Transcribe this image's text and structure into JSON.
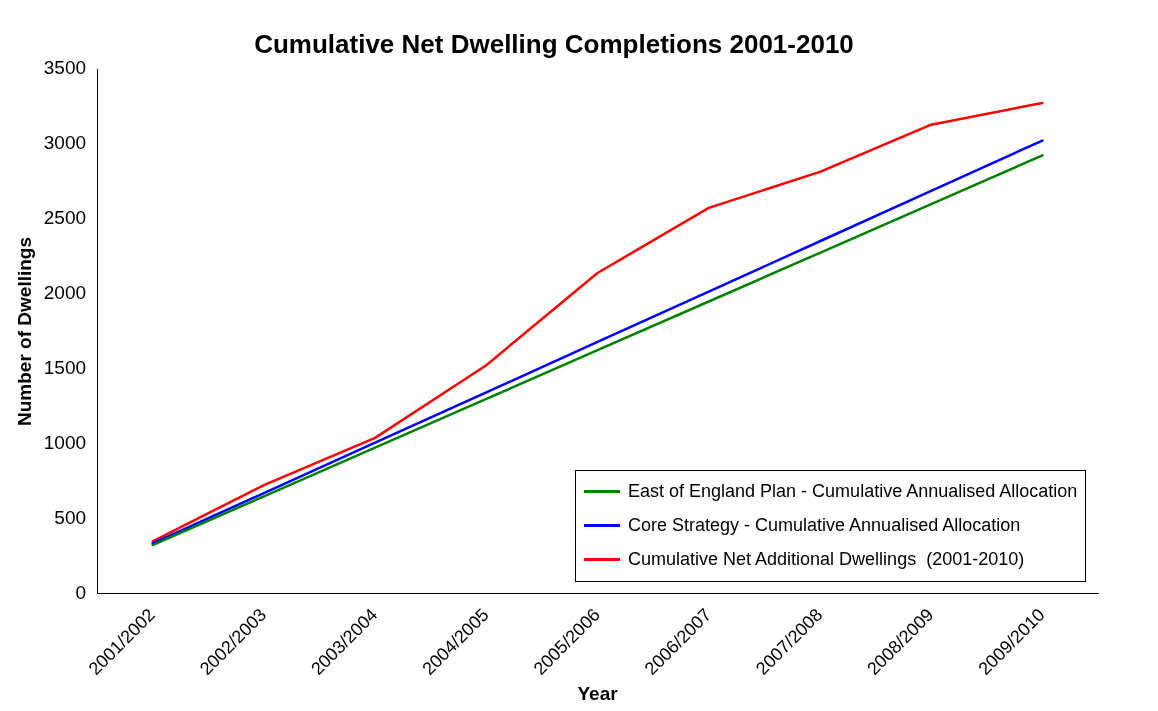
{
  "chart_data": {
    "type": "line",
    "title": "Cumulative Net Dwelling Completions 2001-2010",
    "xlabel": "Year",
    "ylabel": "Number of Dwellings",
    "categories": [
      "2001/2002",
      "2002/2003",
      "2003/2004",
      "2004/2005",
      "2005/2006",
      "2006/2007",
      "2007/2008",
      "2008/2009",
      "2009/2010"
    ],
    "series": [
      {
        "name": "East of England Plan - Cumulative Annualised Allocation",
        "color": "#008000",
        "values": [
          325,
          650,
          975,
          1300,
          1625,
          1950,
          2275,
          2600,
          2925
        ]
      },
      {
        "name": "Core Strategy - Cumulative Annualised Allocation",
        "color": "#0000ff",
        "values": [
          336,
          672,
          1008,
          1344,
          1680,
          2016,
          2352,
          2688,
          3024
        ]
      },
      {
        "name": "Cumulative Net Additional Dwellings  (2001-2010)",
        "color": "#ff0000",
        "values": [
          350,
          725,
          1040,
          1525,
          2140,
          2575,
          2815,
          3130,
          3275
        ]
      }
    ],
    "ylim": [
      0,
      3500
    ],
    "yticks": [
      0,
      500,
      1000,
      1500,
      2000,
      2500,
      3000,
      3500
    ],
    "grid": false,
    "legend": "bottom right",
    "marker": "none",
    "line_style": "solid"
  }
}
